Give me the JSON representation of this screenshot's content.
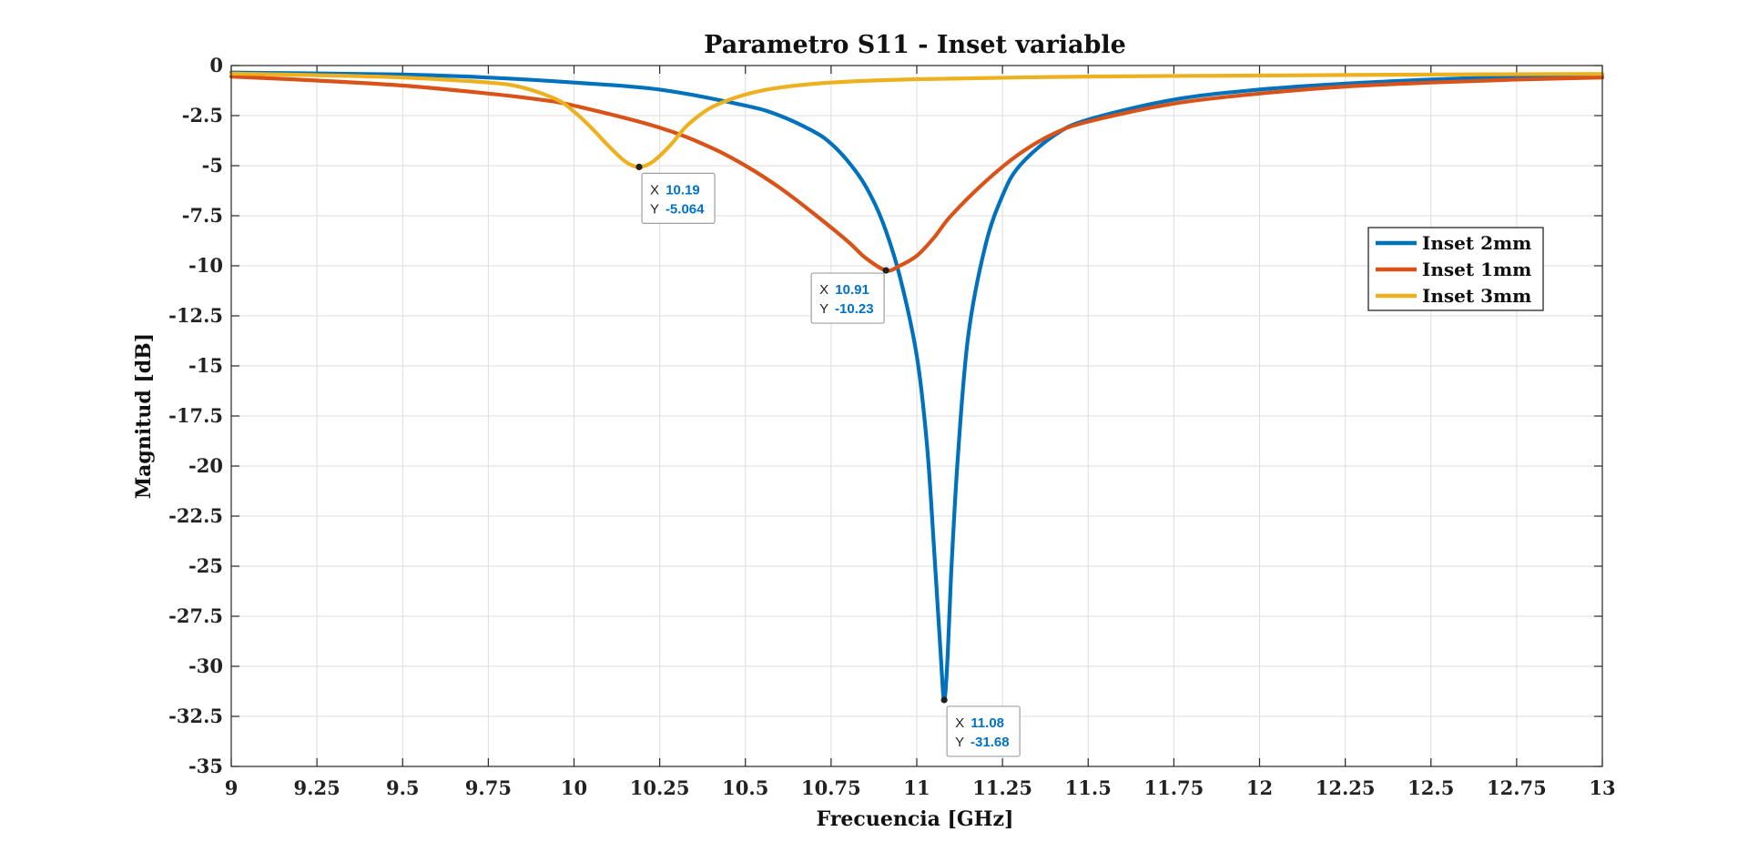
{
  "chart_data": {
    "type": "line",
    "title": "Parametro S11 - Inset variable",
    "xlabel": "Frecuencia [GHz]",
    "ylabel": "Magnitud [dB]",
    "xlim": [
      9,
      13
    ],
    "ylim": [
      -35,
      0
    ],
    "x_ticks": [
      "9",
      "9.25",
      "9.5",
      "9.75",
      "10",
      "10.25",
      "10.5",
      "10.75",
      "11",
      "11.25",
      "11.5",
      "11.75",
      "12",
      "12.25",
      "12.5",
      "12.75",
      "13"
    ],
    "y_ticks": [
      "0",
      "-2.5",
      "-5",
      "-7.5",
      "-10",
      "-12.5",
      "-15",
      "-17.5",
      "-20",
      "-22.5",
      "-25",
      "-27.5",
      "-30",
      "-32.5",
      "-35"
    ],
    "grid": true,
    "legend_position": "right",
    "series": [
      {
        "name": "Inset 2mm",
        "color": "#0072BD",
        "points": [
          [
            9.0,
            -0.35
          ],
          [
            9.5,
            -0.45
          ],
          [
            9.75,
            -0.6
          ],
          [
            10.0,
            -0.85
          ],
          [
            10.25,
            -1.2
          ],
          [
            10.5,
            -2.0
          ],
          [
            10.6,
            -2.5
          ],
          [
            10.7,
            -3.3
          ],
          [
            10.75,
            -3.9
          ],
          [
            10.8,
            -4.8
          ],
          [
            10.85,
            -6.0
          ],
          [
            10.9,
            -7.8
          ],
          [
            10.95,
            -10.5
          ],
          [
            11.0,
            -14.5
          ],
          [
            11.03,
            -19.0
          ],
          [
            11.05,
            -24.0
          ],
          [
            11.07,
            -29.5
          ],
          [
            11.08,
            -31.68
          ],
          [
            11.09,
            -29.5
          ],
          [
            11.1,
            -25.5
          ],
          [
            11.12,
            -19.5
          ],
          [
            11.15,
            -13.5
          ],
          [
            11.2,
            -9.0
          ],
          [
            11.25,
            -6.5
          ],
          [
            11.3,
            -5.0
          ],
          [
            11.4,
            -3.5
          ],
          [
            11.5,
            -2.7
          ],
          [
            11.75,
            -1.7
          ],
          [
            12.0,
            -1.2
          ],
          [
            12.25,
            -0.9
          ],
          [
            12.5,
            -0.7
          ],
          [
            12.75,
            -0.55
          ],
          [
            13.0,
            -0.45
          ]
        ]
      },
      {
        "name": "Inset 1mm",
        "color": "#D95319",
        "points": [
          [
            9.0,
            -0.55
          ],
          [
            9.25,
            -0.75
          ],
          [
            9.5,
            -1.0
          ],
          [
            9.75,
            -1.4
          ],
          [
            9.9,
            -1.7
          ],
          [
            10.0,
            -2.0
          ],
          [
            10.25,
            -3.1
          ],
          [
            10.4,
            -4.1
          ],
          [
            10.5,
            -5.0
          ],
          [
            10.6,
            -6.1
          ],
          [
            10.7,
            -7.4
          ],
          [
            10.8,
            -8.8
          ],
          [
            10.85,
            -9.6
          ],
          [
            10.91,
            -10.23
          ],
          [
            10.95,
            -10.0
          ],
          [
            11.0,
            -9.5
          ],
          [
            11.05,
            -8.6
          ],
          [
            11.1,
            -7.5
          ],
          [
            11.2,
            -5.8
          ],
          [
            11.3,
            -4.4
          ],
          [
            11.4,
            -3.4
          ],
          [
            11.5,
            -2.8
          ],
          [
            11.75,
            -1.9
          ],
          [
            12.0,
            -1.4
          ],
          [
            12.25,
            -1.05
          ],
          [
            12.5,
            -0.85
          ],
          [
            12.75,
            -0.7
          ],
          [
            13.0,
            -0.6
          ]
        ]
      },
      {
        "name": "Inset 3mm",
        "color": "#EDB120",
        "points": [
          [
            9.0,
            -0.4
          ],
          [
            9.25,
            -0.48
          ],
          [
            9.5,
            -0.6
          ],
          [
            9.75,
            -0.85
          ],
          [
            9.85,
            -1.1
          ],
          [
            9.95,
            -1.7
          ],
          [
            10.0,
            -2.3
          ],
          [
            10.05,
            -3.1
          ],
          [
            10.1,
            -4.0
          ],
          [
            10.15,
            -4.8
          ],
          [
            10.19,
            -5.064
          ],
          [
            10.23,
            -4.8
          ],
          [
            10.28,
            -4.0
          ],
          [
            10.33,
            -3.0
          ],
          [
            10.4,
            -2.1
          ],
          [
            10.5,
            -1.45
          ],
          [
            10.6,
            -1.1
          ],
          [
            10.75,
            -0.85
          ],
          [
            11.0,
            -0.68
          ],
          [
            11.5,
            -0.55
          ],
          [
            12.0,
            -0.5
          ],
          [
            12.5,
            -0.45
          ],
          [
            13.0,
            -0.42
          ]
        ]
      }
    ],
    "datatips": [
      {
        "series": "Inset 3mm",
        "x": 10.19,
        "y": -5.064,
        "x_label": "X",
        "x_text": "10.19",
        "y_label": "Y",
        "y_text": "-5.064"
      },
      {
        "series": "Inset 1mm",
        "x": 10.91,
        "y": -10.23,
        "x_label": "X",
        "x_text": "10.91",
        "y_label": "Y",
        "y_text": "-10.23"
      },
      {
        "series": "Inset 2mm",
        "x": 11.08,
        "y": -31.68,
        "x_label": "X",
        "x_text": "11.08",
        "y_label": "Y",
        "y_text": "-31.68"
      }
    ]
  }
}
